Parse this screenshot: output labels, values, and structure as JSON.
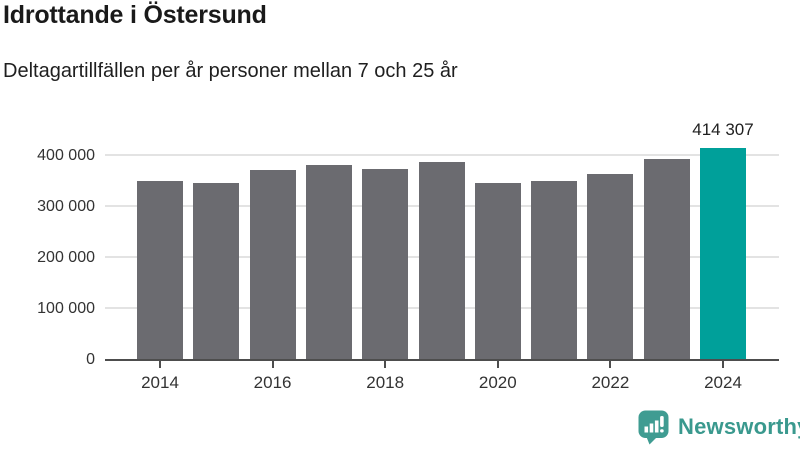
{
  "header": {
    "title": "Idrottande i Östersund",
    "subtitle": "Deltagartillfällen per år personer mellan 7 och 25 år"
  },
  "chart_data": {
    "type": "bar",
    "title": "Idrottande i Östersund",
    "subtitle": "Deltagartillfällen per år personer mellan 7 och 25 år",
    "categories": [
      "2014",
      "2015",
      "2016",
      "2017",
      "2018",
      "2019",
      "2020",
      "2021",
      "2022",
      "2023",
      "2024"
    ],
    "values": [
      348000,
      344000,
      371000,
      380000,
      372000,
      386000,
      344000,
      349000,
      362000,
      392000,
      414307
    ],
    "highlight_index": 10,
    "data_labels": {
      "10": "414 307"
    },
    "x_tick_labels": [
      "2014",
      "2016",
      "2018",
      "2020",
      "2022",
      "2024"
    ],
    "y_ticks": [
      0,
      100000,
      200000,
      300000,
      400000
    ],
    "y_tick_labels": [
      "0",
      "100 000",
      "200 000",
      "300 000",
      "400 000"
    ],
    "ylim": [
      0,
      431000
    ],
    "grid": "horizontal",
    "legend": "none",
    "xlabel": "",
    "ylabel": "",
    "colors": {
      "bar": "#6B6B70",
      "highlight": "#00A09A",
      "gridline": "#e3e3e3",
      "axis": "#4d4d4d"
    }
  },
  "footer": {
    "brand": "Newsworthy",
    "brand_color": "#3A998E",
    "logo_icon": "bar-chart-speech-bubble-icon"
  }
}
